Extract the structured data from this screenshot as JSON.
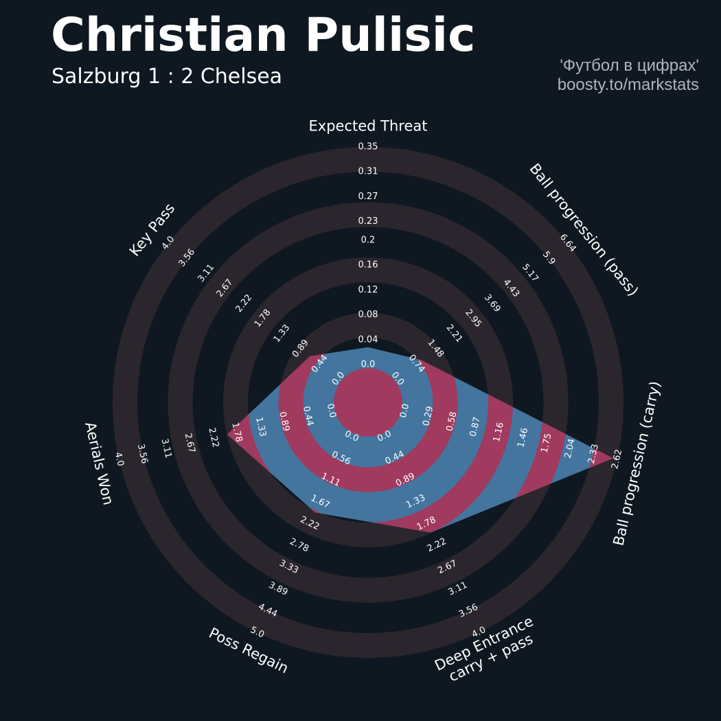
{
  "chart_data": {
    "type": "radar",
    "title": "Christian Pulisic",
    "subtitle": "Salzburg 1 : 2 Chelsea",
    "annotations": [
      "'Футбол в цифрах'",
      "boosty.to/markstats"
    ],
    "background": "#0f1820",
    "ring_color": "#2b262d",
    "color": "#43759e",
    "highlight_color": "#a13a5f",
    "axes": [
      {
        "name": "Expected Threat",
        "lim": [
          0,
          0.35
        ],
        "ticks": [
          {
            "value": 0,
            "label": "0.0"
          },
          0.04,
          0.08,
          0.12,
          0.16,
          0.2,
          0.23,
          0.27,
          0.31,
          0.35
        ]
      },
      {
        "name": "Ball progression (pass)",
        "lim": [
          0,
          6.64
        ],
        "ticks": [
          {
            "value": 0,
            "label": "0.0"
          },
          0.74,
          1.48,
          2.21,
          2.95,
          3.69,
          4.43,
          5.17,
          5.9,
          6.64
        ]
      },
      {
        "name": "Ball progression (carry)",
        "lim": [
          0,
          2.62
        ],
        "ticks": [
          {
            "value": 0,
            "label": "0.0"
          },
          0.29,
          0.58,
          0.87,
          1.16,
          1.46,
          1.75,
          2.04,
          2.33,
          2.62
        ]
      },
      {
        "name": "Deep Entrance\ncarry + pass",
        "lim": [
          0,
          4
        ],
        "ticks": [
          {
            "value": 0,
            "label": "0.0"
          },
          0.44,
          0.89,
          1.33,
          1.78,
          2.22,
          2.67,
          3.11,
          3.56,
          {
            "value": 4,
            "label": "4.0"
          }
        ]
      },
      {
        "name": "Poss Regain",
        "lim": [
          0,
          5
        ],
        "ticks": [
          {
            "value": 0,
            "label": "0.0"
          },
          0.56,
          1.11,
          1.67,
          2.22,
          2.78,
          3.33,
          3.89,
          4.44,
          {
            "value": 5,
            "label": "5.0"
          }
        ]
      },
      {
        "name": "Aerials Won",
        "lim": [
          0,
          4
        ],
        "ticks": [
          {
            "value": 0,
            "label": "0.0"
          },
          0.44,
          0.89,
          1.33,
          1.78,
          2.22,
          2.67,
          3.11,
          3.56,
          {
            "value": 4,
            "label": "4.0"
          }
        ]
      },
      {
        "name": "Key Pass",
        "lim": [
          0,
          4
        ],
        "ticks": [
          {
            "value": 0,
            "label": "0.0"
          },
          0.44,
          0.89,
          1.33,
          1.78,
          2.22,
          2.67,
          3.11,
          3.56,
          {
            "value": 4,
            "label": "4.0"
          }
        ]
      }
    ],
    "values": [
      0.028,
      0.92,
      2.57,
      1.96,
      1.94,
      1.96,
      0.67
    ]
  }
}
